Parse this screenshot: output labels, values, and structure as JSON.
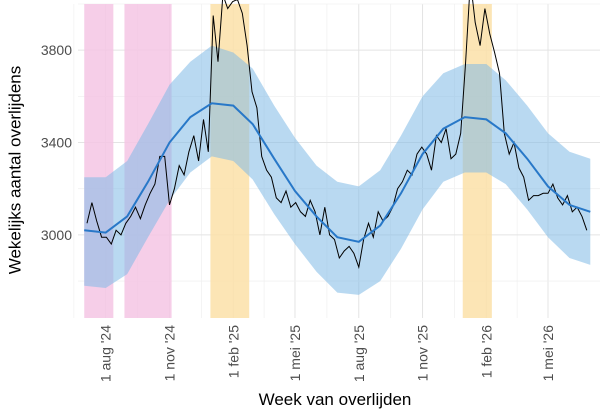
{
  "chart_data": {
    "type": "line",
    "xlabel": "Week van overlijden",
    "ylabel": "Wekelijks aantal overlijdens",
    "x_ticks": [
      "1 aug '24",
      "1 nov '24",
      "1 feb '25",
      "1 mei '25",
      "1 aug '25",
      "1 nov '25",
      "1 feb '26",
      "1 mei '26"
    ],
    "y_ticks": [
      3000,
      3400,
      3800
    ],
    "ylim": [
      2640,
      4000
    ],
    "xlim": [
      "2024-06-22",
      "2026-07-15"
    ],
    "grid": true,
    "legend": "none",
    "shaded_periods": [
      {
        "start": "2024-07-01",
        "end": "2024-08-12",
        "color": "#f4c6e4"
      },
      {
        "start": "2024-08-28",
        "end": "2024-11-04",
        "color": "#f4c6e4"
      },
      {
        "start": "2024-12-30",
        "end": "2025-02-24",
        "color": "#fbe0a8"
      },
      {
        "start": "2025-12-29",
        "end": "2026-02-09",
        "color": "#fbe0a8"
      }
    ],
    "series": [
      {
        "type": "observed",
        "color": "#000000",
        "dates": [
          "2024-07-05",
          "2024-07-12",
          "2024-07-19",
          "2024-07-26",
          "2024-08-02",
          "2024-08-09",
          "2024-08-16",
          "2024-08-23",
          "2024-08-30",
          "2024-09-06",
          "2024-09-13",
          "2024-09-20",
          "2024-09-27",
          "2024-10-04",
          "2024-10-11",
          "2024-10-18",
          "2024-10-25",
          "2024-11-01",
          "2024-11-08",
          "2024-11-15",
          "2024-11-22",
          "2024-11-29",
          "2024-12-06",
          "2024-12-13",
          "2024-12-20",
          "2024-12-27",
          "2025-01-03",
          "2025-01-10",
          "2025-01-17",
          "2025-01-24",
          "2025-01-31",
          "2025-02-07",
          "2025-02-14",
          "2025-02-21",
          "2025-02-28",
          "2025-03-07",
          "2025-03-14",
          "2025-03-21",
          "2025-03-28",
          "2025-04-04",
          "2025-04-11",
          "2025-04-18",
          "2025-04-25",
          "2025-05-02",
          "2025-05-09",
          "2025-05-16",
          "2025-05-23",
          "2025-05-30",
          "2025-06-06",
          "2025-06-13",
          "2025-06-20",
          "2025-06-27",
          "2025-07-04",
          "2025-07-11",
          "2025-07-18",
          "2025-07-25",
          "2025-08-01",
          "2025-08-08",
          "2025-08-15",
          "2025-08-22",
          "2025-08-29",
          "2025-09-05",
          "2025-09-12",
          "2025-09-19",
          "2025-09-26",
          "2025-10-03",
          "2025-10-10",
          "2025-10-17",
          "2025-10-24",
          "2025-10-31",
          "2025-11-07",
          "2025-11-14",
          "2025-11-21",
          "2025-11-28",
          "2025-12-05",
          "2025-12-12",
          "2025-12-19",
          "2025-12-26",
          "2026-01-02",
          "2026-01-09",
          "2026-01-16",
          "2026-01-23",
          "2026-01-30",
          "2026-02-06",
          "2026-02-13",
          "2026-02-20",
          "2026-02-27",
          "2026-03-06",
          "2026-03-13",
          "2026-03-20",
          "2026-03-27",
          "2026-04-03",
          "2026-04-10",
          "2026-04-17",
          "2026-04-24",
          "2026-05-01",
          "2026-05-08",
          "2026-05-15",
          "2026-05-22",
          "2026-05-29",
          "2026-06-05",
          "2026-06-12",
          "2026-06-19",
          "2026-06-26"
        ],
        "values": [
          3050,
          3140,
          3060,
          2990,
          2990,
          2960,
          3020,
          3000,
          3050,
          3080,
          3120,
          3070,
          3130,
          3180,
          3220,
          3340,
          3340,
          3130,
          3200,
          3300,
          3260,
          3360,
          3430,
          3320,
          3500,
          3360,
          3950,
          3750,
          4040,
          3980,
          4010,
          4020,
          3960,
          3820,
          3620,
          3550,
          3340,
          3280,
          3250,
          3160,
          3140,
          3190,
          3120,
          3140,
          3100,
          3080,
          3150,
          3100,
          3000,
          3120,
          3000,
          2980,
          2900,
          2930,
          2950,
          2920,
          2860,
          2980,
          3050,
          2990,
          3100,
          3060,
          3080,
          3120,
          3200,
          3230,
          3280,
          3260,
          3350,
          3380,
          3350,
          3280,
          3430,
          3400,
          3460,
          3330,
          3350,
          3440,
          3740,
          4100,
          3920,
          3820,
          3980,
          3870,
          3790,
          3700,
          3440,
          3350,
          3400,
          3290,
          3250,
          3150,
          3170,
          3170,
          3180,
          3180,
          3220,
          3160,
          3130,
          3170,
          3100,
          3120,
          3080,
          3020
        ]
      },
      {
        "type": "expected",
        "color": "#2878c8",
        "dates": [
          "2024-07-01",
          "2024-08-01",
          "2024-09-01",
          "2024-10-01",
          "2024-11-01",
          "2024-12-01",
          "2025-01-01",
          "2025-02-01",
          "2025-03-01",
          "2025-04-01",
          "2025-05-01",
          "2025-06-01",
          "2025-07-01",
          "2025-08-01",
          "2025-09-01",
          "2025-10-01",
          "2025-11-01",
          "2025-12-01",
          "2026-01-01",
          "2026-02-01",
          "2026-03-01",
          "2026-04-01",
          "2026-05-01",
          "2026-06-01",
          "2026-07-01"
        ],
        "values": [
          3020,
          3010,
          3080,
          3230,
          3400,
          3510,
          3570,
          3560,
          3480,
          3330,
          3190,
          3080,
          2990,
          2970,
          3040,
          3180,
          3350,
          3460,
          3510,
          3500,
          3440,
          3330,
          3210,
          3130,
          3100
        ],
        "band_lower": [
          2780,
          2770,
          2830,
          2990,
          3150,
          3270,
          3340,
          3320,
          3240,
          3090,
          2960,
          2840,
          2750,
          2740,
          2800,
          2940,
          3110,
          3230,
          3270,
          3270,
          3220,
          3110,
          2990,
          2900,
          2870
        ],
        "band_upper": [
          3250,
          3250,
          3320,
          3480,
          3650,
          3750,
          3820,
          3790,
          3720,
          3560,
          3420,
          3300,
          3230,
          3210,
          3280,
          3430,
          3600,
          3700,
          3740,
          3740,
          3670,
          3560,
          3440,
          3360,
          3330
        ]
      }
    ]
  }
}
